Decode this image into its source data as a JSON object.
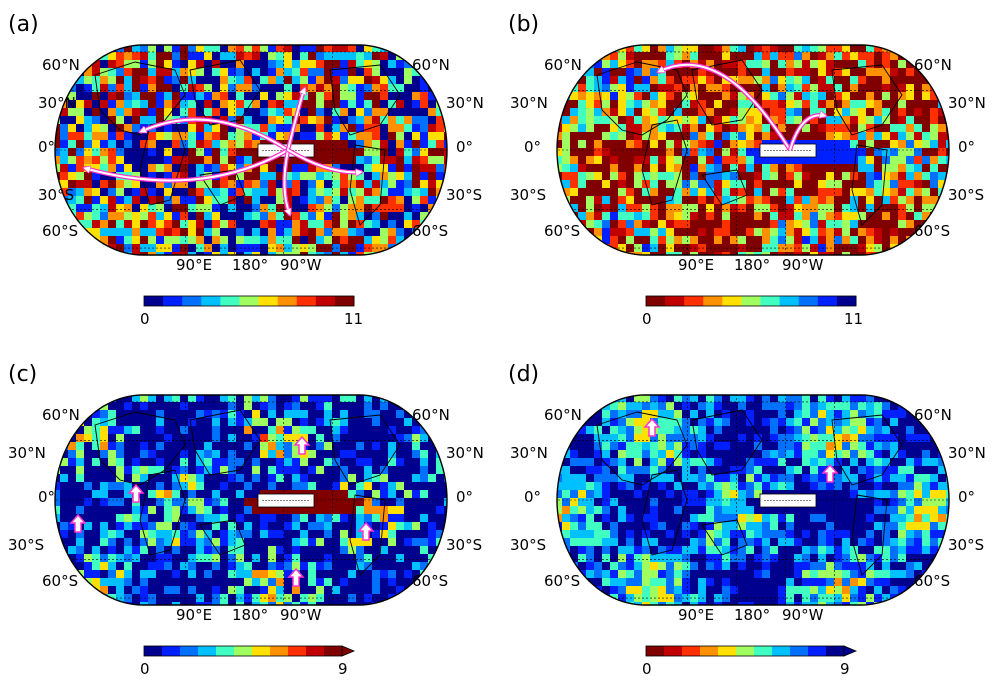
{
  "panels": [
    {
      "label": "(a)",
      "colorbar": {
        "min": "0",
        "max": "11",
        "reversed": false,
        "extend_arrow": false
      }
    },
    {
      "label": "(b)",
      "colorbar": {
        "min": "0",
        "max": "11",
        "reversed": true,
        "extend_arrow": false
      }
    },
    {
      "label": "(c)",
      "colorbar": {
        "min": "0",
        "max": "9",
        "reversed": false,
        "extend_arrow": true
      }
    },
    {
      "label": "(d)",
      "colorbar": {
        "min": "0",
        "max": "9",
        "reversed": true,
        "extend_arrow": true
      }
    }
  ],
  "axes": {
    "lat_left": [
      "60°N",
      "30°N",
      "0°",
      "30°S",
      "60°S"
    ],
    "lat_right": [
      "60°N",
      "30°N",
      "0°",
      "30°S",
      "60°S"
    ],
    "lon": [
      "90°E",
      "180°",
      "90°W"
    ]
  },
  "colors": {
    "jet": [
      "#00008f",
      "#0020ff",
      "#0070ff",
      "#00c0ff",
      "#40ffc0",
      "#a0ff60",
      "#ffe000",
      "#ff9000",
      "#ff3000",
      "#c00000",
      "#800000"
    ],
    "arrow": "#ff33cc"
  }
}
